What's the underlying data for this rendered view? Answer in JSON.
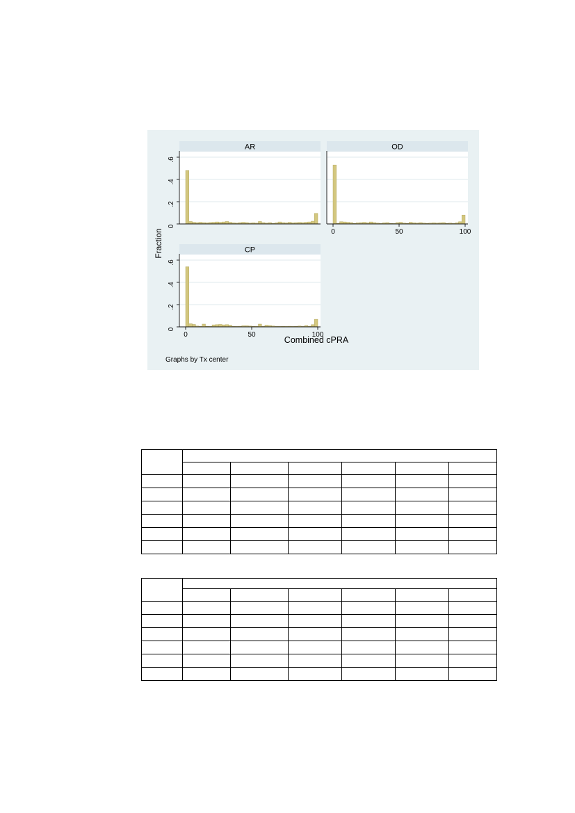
{
  "page": {
    "background": "#ffffff"
  },
  "figure": {
    "note": "Graphs by Tx center",
    "xlabel": "Combined cPRA",
    "ylabel": "Fraction",
    "y_tick_labels": [
      "0",
      ".2",
      ".4",
      ".6"
    ],
    "x_tick_labels": [
      "0",
      "50",
      "100"
    ],
    "colors": {
      "background": "#e9f1f3",
      "title_strip": "#dce7ed",
      "plot": "#ffffff",
      "grid": "#dfeaec",
      "bar_fill": "#d3c77f",
      "bar_edge": "#b5aa62",
      "axis": "#111111",
      "text": "#000000"
    }
  },
  "chart_data": {
    "type": "bar",
    "subtype": "histogram",
    "faceted_by": "Tx center",
    "title": "",
    "xlabel": "Combined cPRA",
    "ylabel": "Fraction",
    "note": "Graphs by Tx center",
    "xlim": [
      -5,
      105
    ],
    "ylim": [
      0,
      0.65
    ],
    "x_ticks": [
      0,
      50,
      100
    ],
    "y_ticks": [
      0,
      0.2,
      0.4,
      0.6
    ],
    "bin_start": 0,
    "bin_width": 2.5,
    "grid": true,
    "legend_position": "none",
    "panels": [
      {
        "label": "AR",
        "values": [
          0.48,
          0.022,
          0.015,
          0.012,
          0.015,
          0.012,
          0.01,
          0.013,
          0.015,
          0.018,
          0.015,
          0.018,
          0.022,
          0.015,
          0.01,
          0.008,
          0.012,
          0.015,
          0.012,
          0.008,
          0.01,
          0.008,
          0.022,
          0.012,
          0.008,
          0.012,
          0.006,
          0.01,
          0.018,
          0.012,
          0.01,
          0.015,
          0.01,
          0.012,
          0.014,
          0.012,
          0.015,
          0.018,
          0.025,
          0.095
        ]
      },
      {
        "label": "OD",
        "values": [
          0.53,
          0.005,
          0.02,
          0.018,
          0.015,
          0.012,
          0.005,
          0.01,
          0.012,
          0.015,
          0.01,
          0.018,
          0.012,
          0.008,
          0.004,
          0.01,
          0.012,
          0.005,
          0.004,
          0.012,
          0.015,
          0.008,
          0.005,
          0.015,
          0.01,
          0.008,
          0.012,
          0.008,
          0.006,
          0.008,
          0.01,
          0.008,
          0.01,
          0.012,
          0.005,
          0.008,
          0.004,
          0.01,
          0.02,
          0.08
        ]
      },
      {
        "label": "CP",
        "values": [
          0.54,
          0.028,
          0.022,
          0.008,
          0.004,
          0.025,
          0.005,
          0.004,
          0.018,
          0.02,
          0.022,
          0.018,
          0.02,
          0.015,
          0.005,
          0.004,
          0.006,
          0.01,
          0.01,
          0.008,
          0.005,
          0.004,
          0.025,
          0.006,
          0.015,
          0.012,
          0.008,
          0.004,
          0.004,
          0.005,
          0.004,
          0.006,
          0.004,
          0.005,
          0.008,
          0.004,
          0.012,
          0.006,
          0.02,
          0.068
        ]
      }
    ]
  },
  "tables": [
    {
      "name": "empty-table-1",
      "corner_label": "",
      "group_header": "",
      "sub_headers": [
        "",
        "",
        "",
        "",
        "",
        ""
      ],
      "rows": [
        [
          "",
          "",
          "",
          "",
          "",
          "",
          ""
        ],
        [
          "",
          "",
          "",
          "",
          "",
          "",
          ""
        ],
        [
          "",
          "",
          "",
          "",
          "",
          "",
          ""
        ],
        [
          "",
          "",
          "",
          "",
          "",
          "",
          ""
        ],
        [
          "",
          "",
          "",
          "",
          "",
          "",
          ""
        ],
        [
          "",
          "",
          "",
          "",
          "",
          "",
          ""
        ]
      ]
    },
    {
      "name": "empty-table-2",
      "corner_label": "",
      "group_header": "",
      "sub_headers": [
        "",
        "",
        "",
        "",
        "",
        ""
      ],
      "rows": [
        [
          "",
          "",
          "",
          "",
          "",
          "",
          ""
        ],
        [
          "",
          "",
          "",
          "",
          "",
          "",
          ""
        ],
        [
          "",
          "",
          "",
          "",
          "",
          "",
          ""
        ],
        [
          "",
          "",
          "",
          "",
          "",
          "",
          ""
        ],
        [
          "",
          "",
          "",
          "",
          "",
          "",
          ""
        ],
        [
          "",
          "",
          "",
          "",
          "",
          "",
          ""
        ]
      ]
    }
  ]
}
